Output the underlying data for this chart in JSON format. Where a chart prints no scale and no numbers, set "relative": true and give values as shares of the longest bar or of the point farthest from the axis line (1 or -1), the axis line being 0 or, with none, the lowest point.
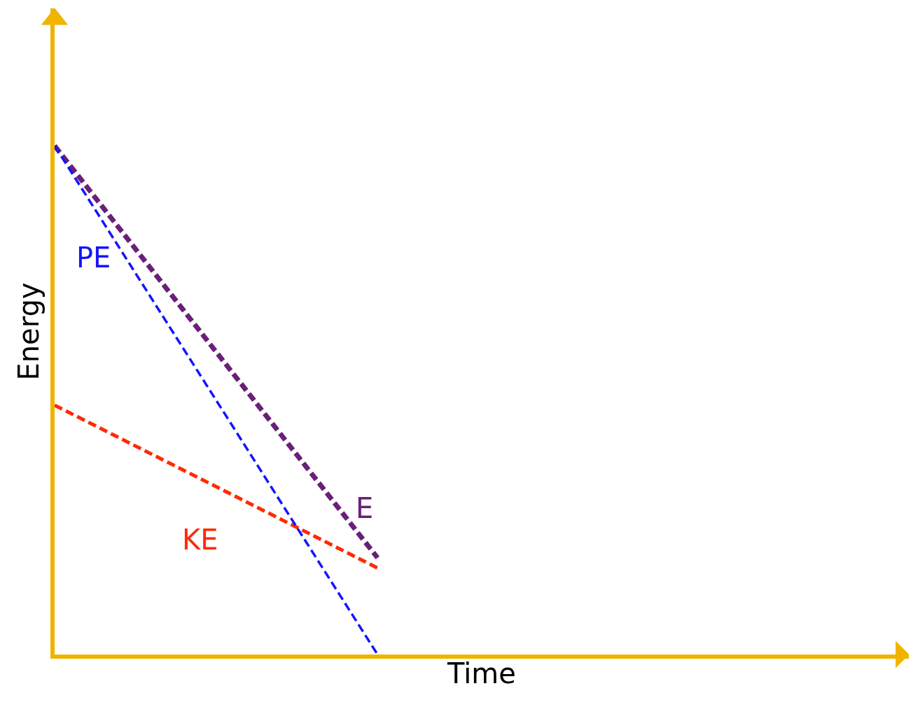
{
  "chart_data": {
    "type": "line",
    "relative": true,
    "xlabel": "Time",
    "ylabel": "Energy",
    "categories": [
      null,
      null
    ],
    "line_style": "dashed",
    "marker": "none",
    "legend": false,
    "series": [
      {
        "name": "PE",
        "color": "#1414ff",
        "values": [
          1,
          0
        ]
      },
      {
        "name": "E",
        "color": "#6a1f78",
        "values": [
          1,
          0.19
        ]
      },
      {
        "name": "KE",
        "color": "#ff2a00",
        "values": [
          0.49,
          0.17
        ]
      }
    ]
  }
}
